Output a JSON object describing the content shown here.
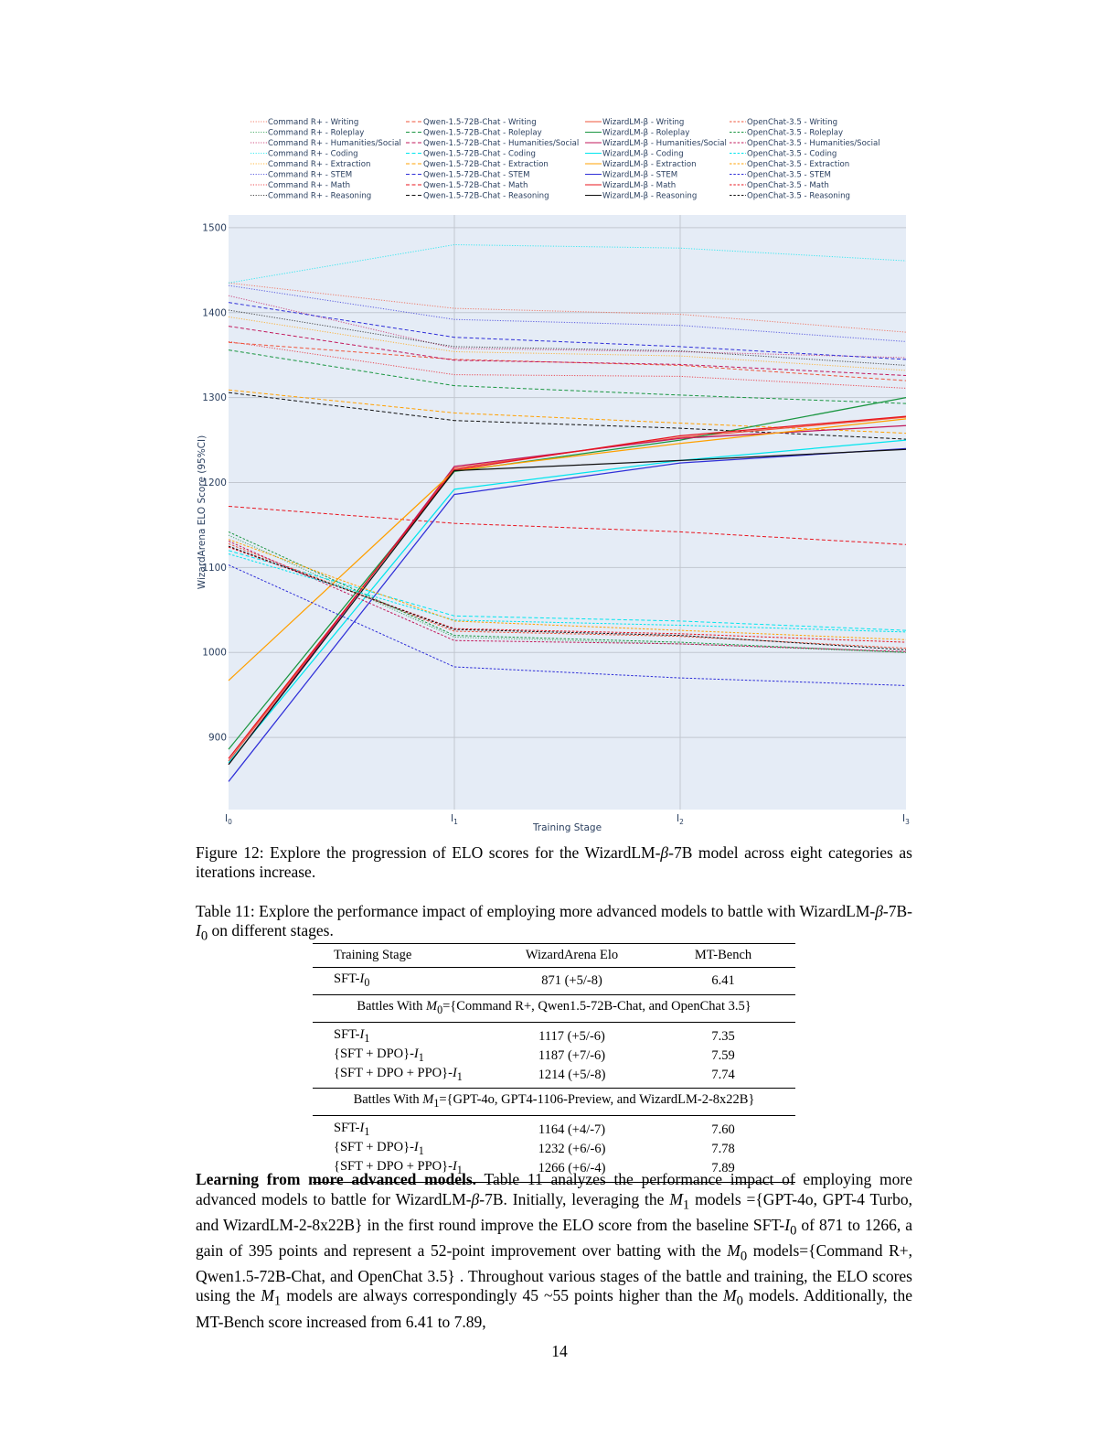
{
  "figure": {
    "chart_data": {
      "type": "line",
      "x": [
        "I0",
        "I1",
        "I2",
        "I3"
      ],
      "tick_labels": [
        {
          "base": "I",
          "sub": "0"
        },
        {
          "base": "I",
          "sub": "1"
        },
        {
          "base": "I",
          "sub": "2"
        },
        {
          "base": "I",
          "sub": "3"
        }
      ],
      "xlabel": "Training Stage",
      "ylabel": "WizardArena ELO Score (95%CI)",
      "ylim": [
        815,
        1515
      ],
      "yticks": [
        900,
        1000,
        1100,
        1200,
        1300,
        1400,
        1500
      ],
      "grid": true,
      "legend_position": "top",
      "colors": {
        "plot_bg": "#e5ecf6",
        "grid": "#c2c7d0",
        "Writing": "#ef553b",
        "Roleplay": "#1a9641",
        "Humanities/Social": "#c2185b",
        "Coding": "#00e5ee",
        "Extraction": "#ffa000",
        "STEM": "#2f2fd8",
        "Math": "#e8141e",
        "Reasoning": "#111111"
      },
      "series": [
        {
          "name": "Command R+ - Writing",
          "model": "Command R+",
          "category": "Writing",
          "values": [
            1435,
            1405,
            1398,
            1377
          ]
        },
        {
          "name": "Command R+ - Roleplay",
          "model": "Command R+",
          "category": "Roleplay",
          "values": [
            1138,
            1018,
            1010,
            1000
          ]
        },
        {
          "name": "Command R+ - Humanities/Social",
          "model": "Command R+",
          "category": "Humanities/Social",
          "values": [
            1420,
            1358,
            1354,
            1347
          ]
        },
        {
          "name": "Command R+ - Coding",
          "model": "Command R+",
          "category": "Coding",
          "values": [
            1435,
            1480,
            1476,
            1461
          ]
        },
        {
          "name": "Command R+ - Extraction",
          "model": "Command R+",
          "category": "Extraction",
          "values": [
            1395,
            1354,
            1349,
            1332
          ]
        },
        {
          "name": "Command R+ - STEM",
          "model": "Command R+",
          "category": "STEM",
          "values": [
            1432,
            1392,
            1385,
            1366
          ]
        },
        {
          "name": "Command R+ - Math",
          "model": "Command R+",
          "category": "Math",
          "values": [
            1366,
            1327,
            1325,
            1311
          ]
        },
        {
          "name": "Command R+ - Reasoning",
          "model": "Command R+",
          "category": "Reasoning",
          "values": [
            1403,
            1360,
            1355,
            1338
          ]
        },
        {
          "name": "Qwen-1.5-72B-Chat - Writing",
          "model": "Qwen-1.5-72B-Chat",
          "category": "Writing",
          "values": [
            1365,
            1345,
            1338,
            1320
          ]
        },
        {
          "name": "Qwen-1.5-72B-Chat - Roleplay",
          "model": "Qwen-1.5-72B-Chat",
          "category": "Roleplay",
          "values": [
            1356,
            1314,
            1303,
            1293
          ]
        },
        {
          "name": "Qwen-1.5-72B-Chat - Humanities/Social",
          "model": "Qwen-1.5-72B-Chat",
          "category": "Humanities/Social",
          "values": [
            1384,
            1344,
            1339,
            1326
          ]
        },
        {
          "name": "Qwen-1.5-72B-Chat - Coding",
          "model": "Qwen-1.5-72B-Chat",
          "category": "Coding",
          "values": [
            1120,
            1043,
            1037,
            1026
          ]
        },
        {
          "name": "Qwen-1.5-72B-Chat - Extraction",
          "model": "Qwen-1.5-72B-Chat",
          "category": "Extraction",
          "values": [
            1309,
            1282,
            1270,
            1258
          ]
        },
        {
          "name": "Qwen-1.5-72B-Chat - STEM",
          "model": "Qwen-1.5-72B-Chat",
          "category": "STEM",
          "values": [
            1412,
            1371,
            1360,
            1345
          ]
        },
        {
          "name": "Qwen-1.5-72B-Chat - Math",
          "model": "Qwen-1.5-72B-Chat",
          "category": "Math",
          "values": [
            1172,
            1152,
            1142,
            1127
          ]
        },
        {
          "name": "Qwen-1.5-72B-Chat - Reasoning",
          "model": "Qwen-1.5-72B-Chat",
          "category": "Reasoning",
          "values": [
            1306,
            1273,
            1264,
            1251
          ]
        },
        {
          "name": "WizardLM-β - Writing",
          "model": "WizardLM-β",
          "category": "Writing",
          "values": [
            872,
            1217,
            1253,
            1277
          ]
        },
        {
          "name": "WizardLM-β - Roleplay",
          "model": "WizardLM-β",
          "category": "Roleplay",
          "values": [
            886,
            1213,
            1250,
            1300
          ]
        },
        {
          "name": "WizardLM-β - Humanities/Social",
          "model": "WizardLM-β",
          "category": "Humanities/Social",
          "values": [
            868,
            1219,
            1252,
            1267
          ]
        },
        {
          "name": "WizardLM-β - Coding",
          "model": "WizardLM-β",
          "category": "Coding",
          "values": [
            870,
            1192,
            1226,
            1250
          ]
        },
        {
          "name": "WizardLM-β - Extraction",
          "model": "WizardLM-β",
          "category": "Extraction",
          "values": [
            967,
            1214,
            1246,
            1275
          ]
        },
        {
          "name": "WizardLM-β - STEM",
          "model": "WizardLM-β",
          "category": "STEM",
          "values": [
            848,
            1186,
            1223,
            1240
          ]
        },
        {
          "name": "WizardLM-β - Math",
          "model": "WizardLM-β",
          "category": "Math",
          "values": [
            875,
            1215,
            1255,
            1278
          ]
        },
        {
          "name": "WizardLM-β - Reasoning",
          "model": "WizardLM-β",
          "category": "Reasoning",
          "values": [
            868,
            1214,
            1226,
            1239
          ]
        },
        {
          "name": "OpenChat-3.5 - Writing",
          "model": "OpenChat-3.5",
          "category": "Writing",
          "values": [
            1128,
            1025,
            1019,
            1005
          ]
        },
        {
          "name": "OpenChat-3.5 - Roleplay",
          "model": "OpenChat-3.5",
          "category": "Roleplay",
          "values": [
            1142,
            1020,
            1012,
            1000
          ]
        },
        {
          "name": "OpenChat-3.5 - Humanities/Social",
          "model": "OpenChat-3.5",
          "category": "Humanities/Social",
          "values": [
            1131,
            1014,
            1010,
            1001
          ]
        },
        {
          "name": "OpenChat-3.5 - Coding",
          "model": "OpenChat-3.5",
          "category": "Coding",
          "values": [
            1116,
            1038,
            1032,
            1024
          ]
        },
        {
          "name": "OpenChat-3.5 - Extraction",
          "model": "OpenChat-3.5",
          "category": "Extraction",
          "values": [
            1133,
            1037,
            1026,
            1015
          ]
        },
        {
          "name": "OpenChat-3.5 - STEM",
          "model": "OpenChat-3.5",
          "category": "STEM",
          "values": [
            1103,
            983,
            970,
            961
          ]
        },
        {
          "name": "OpenChat-3.5 - Math",
          "model": "OpenChat-3.5",
          "category": "Math",
          "values": [
            1124,
            1028,
            1022,
            1012
          ]
        },
        {
          "name": "OpenChat-3.5 - Reasoning",
          "model": "OpenChat-3.5",
          "category": "Reasoning",
          "values": [
            1125,
            1027,
            1020,
            1003
          ]
        }
      ]
    },
    "caption": {
      "label": "Figure 12:",
      "text_1": "Explore the progression of ELO scores for the WizardLM-",
      "beta": "β",
      "text_2": "-7B model across eight categories as iterations increase."
    }
  },
  "table": {
    "caption": {
      "label": "Table 11:",
      "text_1": "Explore the performance impact of employing more advanced models to battle with WizardLM-",
      "beta": "β",
      "text_2": "-7B-",
      "i_base": "I",
      "i_sub": "0",
      "text_3": " on different stages."
    },
    "headers": [
      "Training Stage",
      "WizardArena Elo",
      "MT-Bench"
    ],
    "baseline": {
      "name_prefix": "SFT-",
      "sub": "0",
      "elo": "871 (+5/-8)",
      "mt": "6.41"
    },
    "groups": [
      {
        "title_prefix": "Battles With ",
        "model_sub": "0",
        "title_suffix": "={Command R+, Qwen1.5-72B-Chat, and OpenChat 3.5}",
        "rows": [
          {
            "name_prefix": "SFT-",
            "sub": "1",
            "elo": "1117 (+5/-6)",
            "mt": "7.35"
          },
          {
            "name_prefix": "{SFT + DPO}-",
            "sub": "1",
            "elo": "1187 (+7/-6)",
            "mt": "7.59"
          },
          {
            "name_prefix": "{SFT + DPO + PPO}-",
            "sub": "1",
            "elo": "1214 (+5/-8)",
            "mt": "7.74"
          }
        ]
      },
      {
        "title_prefix": "Battles With ",
        "model_sub": "1",
        "title_suffix": "={GPT-4o, GPT4-1106-Preview, and WizardLM-2-8x22B}",
        "rows": [
          {
            "name_prefix": "SFT-",
            "sub": "1",
            "elo": "1164 (+4/-7)",
            "mt": "7.60"
          },
          {
            "name_prefix": "{SFT + DPO}-",
            "sub": "1",
            "elo": "1232 (+6/-6)",
            "mt": "7.78"
          },
          {
            "name_prefix": "{SFT + DPO + PPO}-",
            "sub": "1",
            "elo": "1266 (+6/-4)",
            "mt": "7.89"
          }
        ]
      }
    ]
  },
  "paragraph": {
    "heading": "Learning from more advanced models.",
    "t1": " Table  11 analyzes the performance impact of employing more advanced models to battle for WizardLM-",
    "beta": "β",
    "t2": "-7B. Initially, leveraging the ",
    "m1a": "1",
    "t3": " models ={GPT-4o, GPT-4 Turbo, and WizardLM-2-8x22B} in the first round improve the ELO score from the baseline SFT-",
    "i0": "0",
    "t4": " of 871 to 1266, a gain of 395 points and represent a 52-point improvement over batting with the ",
    "m0a": "0",
    "t5": " models={Command R+, Qwen1.5-72B-Chat, and OpenChat 3.5} . Throughout various stages of the battle and training, the ELO scores using the ",
    "m1b": "1",
    "t6": " models are always correspondingly 45 ~55 points higher than the ",
    "m0b": "0",
    "t7": " models. Additionally, the MT-Bench score increased from 6.41 to 7.89,"
  },
  "page_number": "14"
}
